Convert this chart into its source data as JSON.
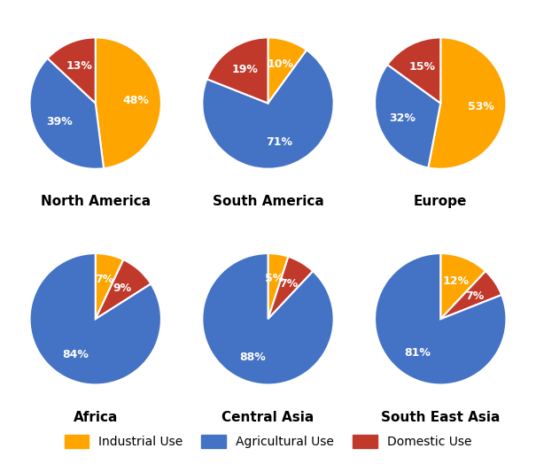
{
  "regions": [
    "North America",
    "South America",
    "Europe",
    "Africa",
    "Central Asia",
    "South East Asia"
  ],
  "categories": [
    "Industrial Use",
    "Agricultural Use",
    "Domestic Use"
  ],
  "colors": {
    "Industrial": "#FFA500",
    "Agricultural": "#4472C4",
    "Domestic": "#C0392B"
  },
  "data": {
    "North America": {
      "Industrial": 48,
      "Agricultural": 39,
      "Domestic": 13
    },
    "South America": {
      "Industrial": 10,
      "Agricultural": 71,
      "Domestic": 19
    },
    "Europe": {
      "Industrial": 53,
      "Agricultural": 32,
      "Domestic": 15
    },
    "Africa": {
      "Industrial": 7,
      "Agricultural": 84,
      "Domestic": 9
    },
    "Central Asia": {
      "Industrial": 5,
      "Agricultural": 88,
      "Domestic": 7
    },
    "South East Asia": {
      "Industrial": 12,
      "Agricultural": 81,
      "Domestic": 7
    }
  },
  "configs": {
    "North America": {
      "order": [
        "Industrial",
        "Agricultural",
        "Domestic"
      ],
      "startangle": 90,
      "counterclock": false
    },
    "South America": {
      "order": [
        "Industrial",
        "Agricultural",
        "Domestic"
      ],
      "startangle": 90,
      "counterclock": false
    },
    "Europe": {
      "order": [
        "Industrial",
        "Agricultural",
        "Domestic"
      ],
      "startangle": 90,
      "counterclock": false
    },
    "Africa": {
      "order": [
        "Industrial",
        "Domestic",
        "Agricultural"
      ],
      "startangle": 90,
      "counterclock": false
    },
    "Central Asia": {
      "order": [
        "Industrial",
        "Domestic",
        "Agricultural"
      ],
      "startangle": 90,
      "counterclock": false
    },
    "South East Asia": {
      "order": [
        "Industrial",
        "Domestic",
        "Agricultural"
      ],
      "startangle": 90,
      "counterclock": false
    }
  },
  "background_color": "#FFFFFF",
  "label_color": "#FFFFFF",
  "title_fontsize": 11,
  "label_fontsize": 9,
  "legend_fontsize": 10,
  "pctdistance": 0.62
}
